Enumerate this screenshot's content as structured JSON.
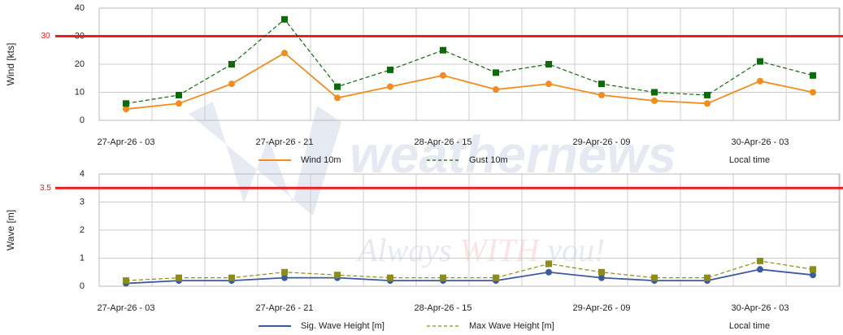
{
  "chart_data": [
    {
      "type": "line",
      "ylabel": "Wind [kts]",
      "xlabel": "Local time",
      "categories": [
        "27-Apr-26 - 03",
        null,
        null,
        "27-Apr-26 - 21",
        null,
        null,
        "28-Apr-26 - 15",
        null,
        null,
        "29-Apr-26 - 09",
        null,
        null,
        "30-Apr-26 - 03",
        null
      ],
      "series": [
        {
          "name": "Wind 10m",
          "color": "#f28c1e",
          "dash": false,
          "marker": "circle",
          "values": [
            4,
            6,
            13,
            24,
            8,
            12,
            16,
            11,
            13,
            9,
            7,
            6,
            14,
            10
          ]
        },
        {
          "name": "Gust 10m",
          "color": "#0b6b0b",
          "dash": true,
          "marker": "square",
          "values": [
            6,
            9,
            20,
            36,
            12,
            18,
            25,
            17,
            20,
            13,
            10,
            9,
            21,
            16
          ]
        }
      ],
      "threshold": {
        "value": 30,
        "color": "#ee1c1c"
      },
      "ylim": [
        0,
        40
      ],
      "yticks": [
        0,
        10,
        20,
        30,
        40
      ],
      "grid": true
    },
    {
      "type": "line",
      "ylabel": "Wave [m]",
      "xlabel": "Local time",
      "categories": [
        "27-Apr-26 - 03",
        null,
        null,
        "27-Apr-26 - 21",
        null,
        null,
        "28-Apr-26 - 15",
        null,
        null,
        "29-Apr-26 - 09",
        null,
        null,
        "30-Apr-26 - 03",
        null
      ],
      "series": [
        {
          "name": "Sig. Wave Height [m]",
          "color": "#3b5aa0",
          "dash": false,
          "marker": "circle",
          "values": [
            0.1,
            0.2,
            0.2,
            0.3,
            0.3,
            0.2,
            0.2,
            0.2,
            0.5,
            0.3,
            0.2,
            0.2,
            0.6,
            0.4
          ]
        },
        {
          "name": "Max Wave Height [m]",
          "color": "#8c8c1a",
          "dash": true,
          "marker": "square",
          "values": [
            0.2,
            0.3,
            0.3,
            0.5,
            0.4,
            0.3,
            0.3,
            0.3,
            0.8,
            0.5,
            0.3,
            0.3,
            0.9,
            0.6
          ]
        }
      ],
      "threshold": {
        "value": 3.5,
        "color": "#ee1c1c"
      },
      "ylim": [
        0,
        4
      ],
      "yticks": [
        0,
        1,
        2,
        3,
        4
      ],
      "grid": true
    }
  ],
  "watermark": {
    "brand": "weathernews",
    "slogan_1": "Always ",
    "slogan_2": "WITH",
    "slogan_3": " you!"
  }
}
